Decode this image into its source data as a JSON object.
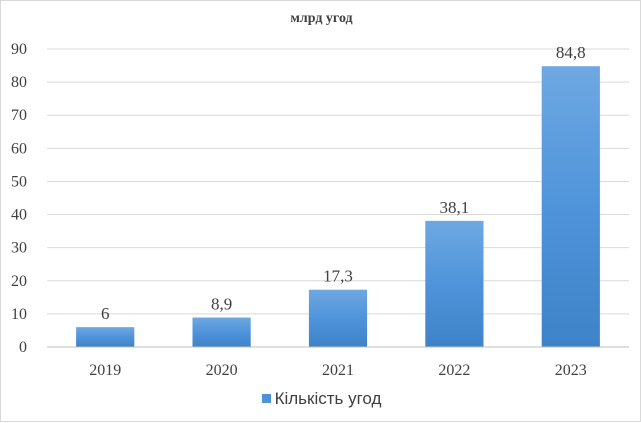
{
  "chart_data": {
    "type": "bar",
    "title": "млрд угод",
    "categories": [
      "2019",
      "2020",
      "2021",
      "2022",
      "2023"
    ],
    "series": [
      {
        "name": "Кількість угод",
        "values": [
          6,
          8.9,
          17.3,
          38.1,
          84.8
        ],
        "labels": [
          "6",
          "8,9",
          "17,3",
          "38,1",
          "84,8"
        ],
        "color": "#4f92d6"
      }
    ],
    "yticks": [
      "0",
      "10",
      "20",
      "30",
      "40",
      "50",
      "60",
      "70",
      "80",
      "90"
    ],
    "ylim": [
      0,
      90
    ],
    "grid": true,
    "legend_position": "bottom"
  }
}
